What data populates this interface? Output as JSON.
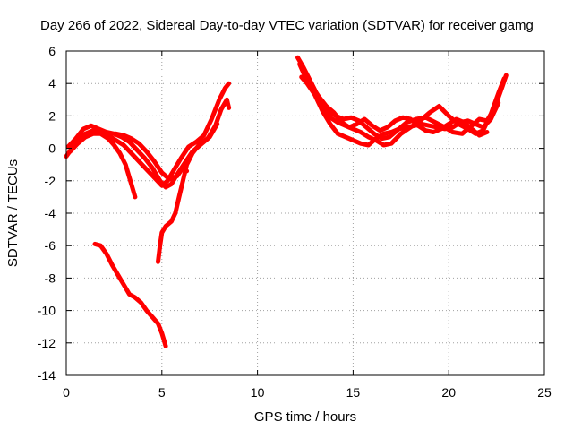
{
  "chart_data": {
    "type": "line",
    "title": "Day 266 of 2022, Sidereal Day-to-day VTEC variation (SDTVAR) for receiver gamg",
    "xlabel": "GPS time / hours",
    "ylabel": "SDTVAR / TECUs",
    "xlim": [
      0,
      25
    ],
    "ylim": [
      -14,
      6
    ],
    "xticks": [
      0,
      5,
      10,
      15,
      20,
      25
    ],
    "yticks": [
      -14,
      -12,
      -10,
      -8,
      -6,
      -4,
      -2,
      0,
      2,
      4,
      6
    ],
    "xtick_labels": [
      "0",
      "5",
      "10",
      "15",
      "20",
      "25"
    ],
    "ytick_labels": [
      "-14",
      "-12",
      "-10",
      "-8",
      "-6",
      "-4",
      "-2",
      "0",
      "2",
      "4",
      "6"
    ],
    "grid": true,
    "legend": "none",
    "color": "#ff0000",
    "series": [
      {
        "points": [
          [
            0.0,
            -0.5
          ],
          [
            0.3,
            0.0
          ],
          [
            0.6,
            0.5
          ],
          [
            1.0,
            0.9
          ],
          [
            1.4,
            1.1
          ],
          [
            1.8,
            1.0
          ],
          [
            2.2,
            0.8
          ],
          [
            2.6,
            0.5
          ],
          [
            3.0,
            0.2
          ],
          [
            3.4,
            -0.3
          ],
          [
            3.8,
            -0.8
          ],
          [
            4.2,
            -1.3
          ],
          [
            4.6,
            -1.8
          ],
          [
            5.0,
            -2.3
          ],
          [
            5.3,
            -2.0
          ],
          [
            5.6,
            -1.4
          ],
          [
            6.0,
            -0.6
          ],
          [
            6.4,
            0.1
          ],
          [
            6.8,
            0.4
          ],
          [
            7.2,
            0.8
          ],
          [
            7.6,
            1.8
          ],
          [
            8.0,
            3.0
          ],
          [
            8.3,
            3.7
          ],
          [
            8.5,
            4.0
          ]
        ]
      },
      {
        "points": [
          [
            0.1,
            0.1
          ],
          [
            0.5,
            0.6
          ],
          [
            0.9,
            1.2
          ],
          [
            1.3,
            1.4
          ],
          [
            1.7,
            1.2
          ],
          [
            2.1,
            1.0
          ],
          [
            2.5,
            0.9
          ],
          [
            2.9,
            0.7
          ],
          [
            3.3,
            0.4
          ],
          [
            3.7,
            -0.1
          ],
          [
            4.1,
            -0.6
          ],
          [
            4.5,
            -1.2
          ],
          [
            4.9,
            -2.0
          ],
          [
            5.2,
            -2.4
          ],
          [
            5.5,
            -2.2
          ],
          [
            5.8,
            -1.6
          ],
          [
            6.2,
            -0.9
          ],
          [
            6.6,
            -0.2
          ],
          [
            7.0,
            0.2
          ],
          [
            7.4,
            0.6
          ],
          [
            7.8,
            1.4
          ],
          [
            8.1,
            2.4
          ],
          [
            8.4,
            3.0
          ],
          [
            8.5,
            2.5
          ]
        ]
      },
      {
        "points": [
          [
            0.2,
            -0.2
          ],
          [
            0.6,
            0.3
          ],
          [
            1.0,
            0.7
          ],
          [
            1.4,
            0.9
          ],
          [
            1.8,
            0.9
          ],
          [
            2.2,
            0.6
          ],
          [
            2.5,
            0.2
          ],
          [
            2.8,
            -0.3
          ],
          [
            3.1,
            -1.0
          ],
          [
            3.3,
            -1.8
          ],
          [
            3.5,
            -2.6
          ],
          [
            3.6,
            -3.0
          ]
        ]
      },
      {
        "points": [
          [
            2.6,
            0.9
          ],
          [
            3.0,
            0.8
          ],
          [
            3.4,
            0.6
          ],
          [
            3.8,
            0.3
          ],
          [
            4.2,
            -0.2
          ],
          [
            4.6,
            -0.8
          ],
          [
            5.0,
            -1.5
          ],
          [
            5.4,
            -1.9
          ],
          [
            5.8,
            -1.7
          ],
          [
            6.1,
            -1.2
          ],
          [
            6.3,
            -1.4
          ]
        ]
      },
      {
        "points": [
          [
            4.8,
            -7.0
          ],
          [
            4.9,
            -6.0
          ],
          [
            5.0,
            -5.2
          ],
          [
            5.2,
            -4.8
          ],
          [
            5.5,
            -4.5
          ],
          [
            5.7,
            -4.0
          ],
          [
            5.9,
            -3.0
          ],
          [
            6.1,
            -2.0
          ],
          [
            6.3,
            -1.0
          ],
          [
            6.6,
            -0.3
          ],
          [
            7.0,
            0.3
          ],
          [
            7.5,
            0.7
          ],
          [
            7.9,
            1.5
          ]
        ]
      },
      {
        "points": [
          [
            1.5,
            -5.9
          ],
          [
            1.8,
            -6.0
          ],
          [
            2.1,
            -6.5
          ],
          [
            2.4,
            -7.2
          ],
          [
            2.7,
            -7.8
          ],
          [
            3.0,
            -8.4
          ],
          [
            3.3,
            -9.0
          ],
          [
            3.6,
            -9.2
          ],
          [
            3.9,
            -9.5
          ],
          [
            4.2,
            -10.0
          ],
          [
            4.5,
            -10.4
          ],
          [
            4.8,
            -10.8
          ],
          [
            5.0,
            -11.4
          ],
          [
            5.2,
            -12.2
          ]
        ]
      },
      {
        "points": [
          [
            12.1,
            5.6
          ],
          [
            12.4,
            5.0
          ],
          [
            12.7,
            4.3
          ],
          [
            13.0,
            3.6
          ],
          [
            13.4,
            2.6
          ],
          [
            13.8,
            1.9
          ],
          [
            14.2,
            1.6
          ],
          [
            14.6,
            1.4
          ],
          [
            15.0,
            1.2
          ],
          [
            15.4,
            1.0
          ],
          [
            15.8,
            0.7
          ],
          [
            16.2,
            0.5
          ],
          [
            16.6,
            0.2
          ],
          [
            17.0,
            0.3
          ],
          [
            17.5,
            0.9
          ],
          [
            18.0,
            1.3
          ],
          [
            18.5,
            1.7
          ],
          [
            19.0,
            2.2
          ],
          [
            19.5,
            2.6
          ],
          [
            20.0,
            2.0
          ],
          [
            20.5,
            1.5
          ],
          [
            21.0,
            1.2
          ],
          [
            21.4,
            0.9
          ],
          [
            21.8,
            1.1
          ],
          [
            22.2,
            2.1
          ],
          [
            22.6,
            3.4
          ],
          [
            22.9,
            4.3
          ]
        ]
      },
      {
        "points": [
          [
            12.2,
            5.2
          ],
          [
            12.5,
            4.4
          ],
          [
            12.9,
            3.7
          ],
          [
            13.3,
            3.0
          ],
          [
            13.7,
            2.3
          ],
          [
            14.1,
            2.0
          ],
          [
            14.5,
            1.8
          ],
          [
            14.9,
            1.9
          ],
          [
            15.3,
            1.7
          ],
          [
            15.7,
            1.3
          ],
          [
            16.1,
            0.9
          ],
          [
            16.5,
            0.6
          ],
          [
            16.9,
            0.7
          ],
          [
            17.3,
            1.1
          ],
          [
            17.8,
            1.6
          ],
          [
            18.3,
            1.8
          ],
          [
            18.8,
            1.9
          ],
          [
            19.3,
            1.6
          ],
          [
            19.8,
            1.3
          ],
          [
            20.2,
            1.0
          ],
          [
            20.7,
            0.9
          ],
          [
            21.2,
            1.4
          ],
          [
            21.6,
            1.8
          ],
          [
            22.0,
            1.7
          ],
          [
            22.4,
            2.5
          ],
          [
            22.8,
            3.8
          ],
          [
            23.0,
            4.5
          ]
        ]
      },
      {
        "points": [
          [
            12.3,
            4.4
          ],
          [
            12.6,
            4.0
          ],
          [
            13.0,
            3.3
          ],
          [
            13.4,
            2.3
          ],
          [
            13.8,
            1.5
          ],
          [
            14.2,
            0.9
          ],
          [
            14.6,
            0.7
          ],
          [
            15.0,
            0.5
          ],
          [
            15.4,
            0.3
          ],
          [
            15.8,
            0.2
          ],
          [
            16.2,
            0.6
          ],
          [
            16.6,
            0.9
          ],
          [
            17.0,
            1.0
          ],
          [
            17.4,
            1.2
          ],
          [
            17.8,
            1.3
          ],
          [
            18.2,
            1.4
          ],
          [
            18.6,
            1.5
          ],
          [
            19.0,
            1.4
          ],
          [
            19.4,
            1.3
          ],
          [
            19.8,
            1.2
          ],
          [
            20.2,
            1.3
          ],
          [
            20.6,
            1.6
          ],
          [
            21.0,
            1.7
          ],
          [
            21.4,
            1.5
          ],
          [
            21.8,
            1.3
          ],
          [
            22.2,
            1.8
          ],
          [
            22.6,
            2.8
          ]
        ]
      },
      {
        "points": [
          [
            12.4,
            4.7
          ],
          [
            12.8,
            3.9
          ],
          [
            13.2,
            3.2
          ],
          [
            13.6,
            2.6
          ],
          [
            14.0,
            2.2
          ],
          [
            14.4,
            1.6
          ],
          [
            14.8,
            1.3
          ],
          [
            15.2,
            1.5
          ],
          [
            15.6,
            1.8
          ],
          [
            16.0,
            1.4
          ],
          [
            16.4,
            1.1
          ],
          [
            16.8,
            1.3
          ],
          [
            17.2,
            1.7
          ],
          [
            17.6,
            1.9
          ],
          [
            18.0,
            1.8
          ],
          [
            18.4,
            1.4
          ],
          [
            18.8,
            1.1
          ],
          [
            19.2,
            1.0
          ],
          [
            19.6,
            1.2
          ],
          [
            20.0,
            1.5
          ],
          [
            20.4,
            1.8
          ],
          [
            20.8,
            1.6
          ],
          [
            21.2,
            1.2
          ],
          [
            21.6,
            0.8
          ],
          [
            22.0,
            1.0
          ]
        ]
      }
    ]
  }
}
